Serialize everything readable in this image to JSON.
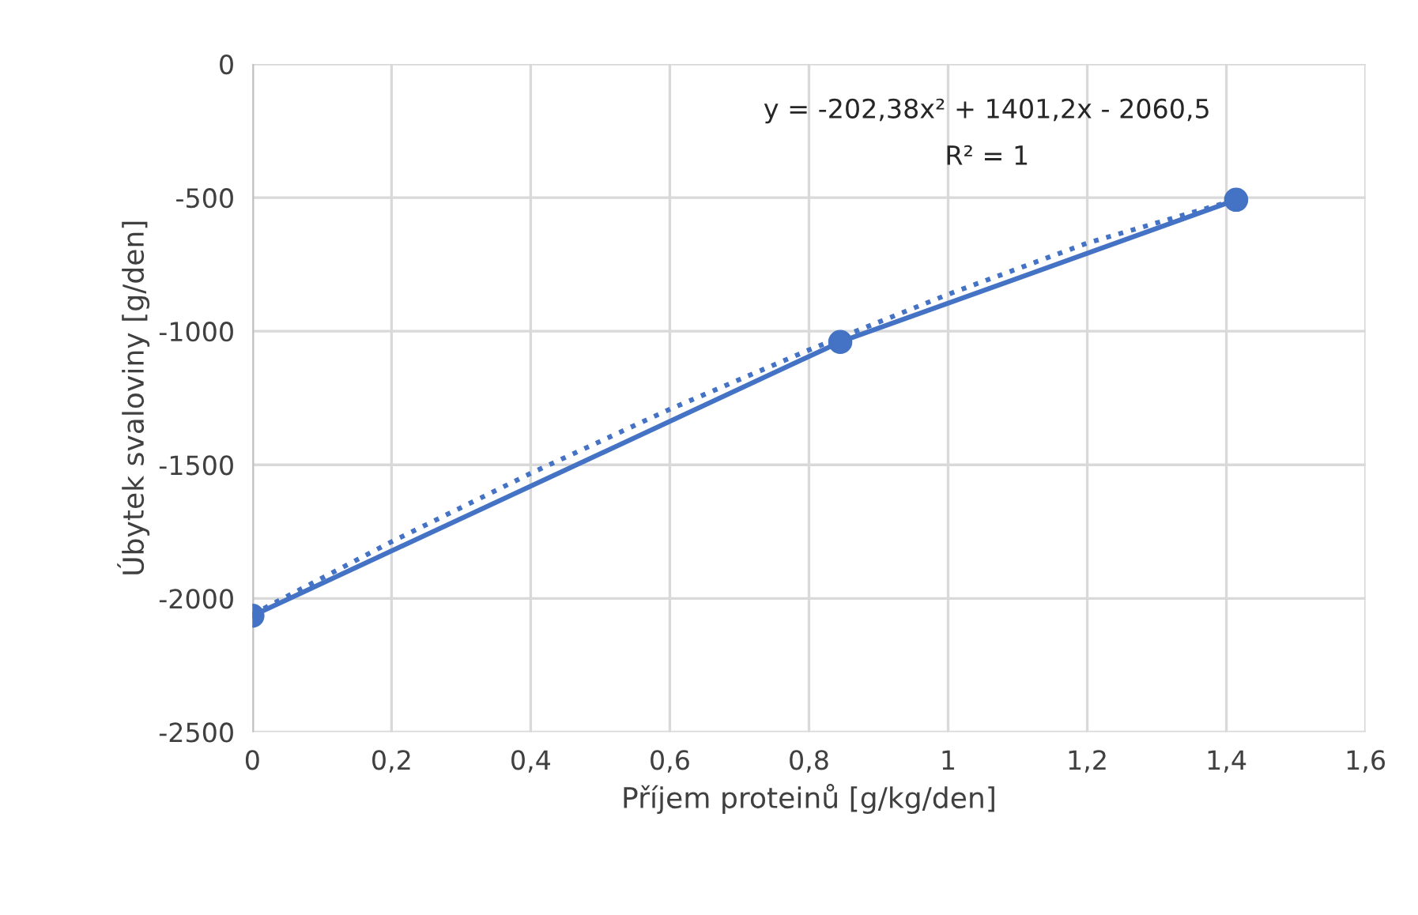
{
  "chart_data": {
    "type": "line",
    "xlabel": "Příjem proteinů [g/kg/den]",
    "ylabel": "Úbytek svaloviny [g/den]",
    "x": [
      0,
      0.845,
      1.414
    ],
    "series": [
      {
        "color": "#4472c4",
        "values": [
          -2065,
          -1040,
          -508
        ],
        "marker": "circle",
        "line_style": "solid"
      },
      {
        "type": "line",
        "color": "#4472c4",
        "x": [
          0,
          0.2,
          0.4,
          0.6,
          0.8,
          1.0,
          1.2,
          1.414
        ],
        "values": [
          -2060,
          -1788,
          -1532,
          -1292,
          -1070,
          -862,
          -670,
          -508
        ],
        "marker": "none",
        "line_style": "dotted"
      }
    ],
    "annotations": [
      "y = -202,38x² + 1401,2x - 2060,5",
      "R² = 1"
    ],
    "xlim": [
      0,
      1.6
    ],
    "xticks": [
      {
        "value": 0,
        "label": "0"
      },
      {
        "value": 0.2,
        "label": "0,2"
      },
      {
        "value": 0.4,
        "label": "0,4"
      },
      {
        "value": 0.6,
        "label": "0,6"
      },
      {
        "value": 0.8,
        "label": "0,8"
      },
      {
        "value": 1,
        "label": "1"
      },
      {
        "value": 1.2,
        "label": "1,2"
      },
      {
        "value": 1.4,
        "label": "1,4"
      },
      {
        "value": 1.6,
        "label": "1,6"
      }
    ],
    "ylim": [
      -2500,
      0
    ],
    "yticks": [
      -2500,
      -2000,
      -1500,
      -1000,
      -500,
      0
    ],
    "grid": true
  }
}
